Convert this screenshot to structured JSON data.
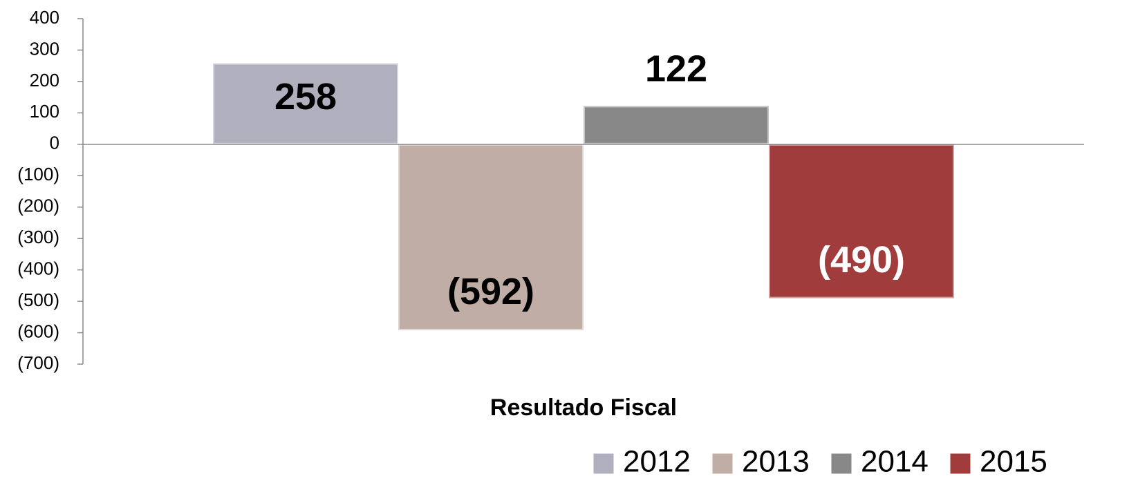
{
  "chart_data": {
    "type": "bar",
    "categories": [
      "Resultado Fiscal"
    ],
    "series": [
      {
        "name": "2012",
        "color": "#b0afbd",
        "label_color": "#000000",
        "values": [
          258
        ],
        "value_labels": [
          "258"
        ]
      },
      {
        "name": "2013",
        "color": "#bfada6",
        "label_color": "#000000",
        "values": [
          -592
        ],
        "value_labels": [
          "(592)"
        ]
      },
      {
        "name": "2014",
        "color": "#888888",
        "label_color": "#000000",
        "values": [
          122
        ],
        "value_labels": [
          "122"
        ]
      },
      {
        "name": "2015",
        "color": "#a03c3c",
        "label_color": "#ffffff",
        "values": [
          -490
        ],
        "value_labels": [
          "(490)"
        ]
      }
    ],
    "ylim": [
      -700,
      400
    ],
    "yticks": [
      {
        "value": -700,
        "label": "(700)"
      },
      {
        "value": -600,
        "label": "(600)"
      },
      {
        "value": -500,
        "label": "(500)"
      },
      {
        "value": -400,
        "label": "(400)"
      },
      {
        "value": -300,
        "label": "(300)"
      },
      {
        "value": -200,
        "label": "(200)"
      },
      {
        "value": -100,
        "label": "(100)"
      },
      0,
      100,
      200,
      300,
      400
    ],
    "legend": "bottom-right"
  }
}
